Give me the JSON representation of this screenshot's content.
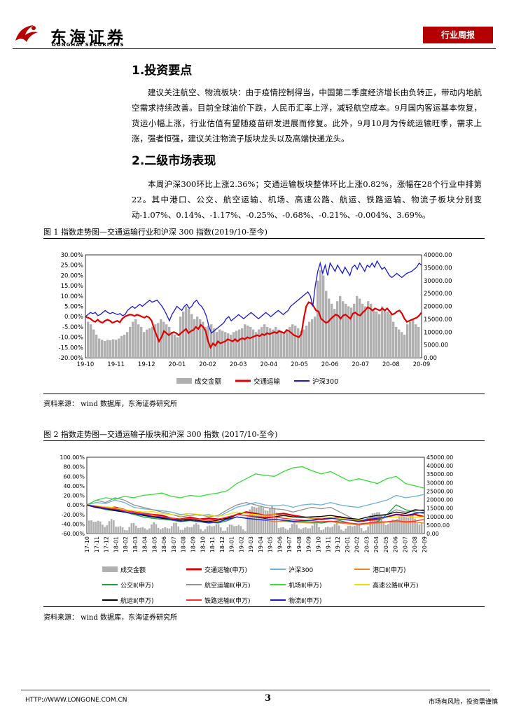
{
  "header": {
    "brand_cn": "东海证券",
    "brand_en": "DONGHAI SECURITIES",
    "report_type": "行业周报",
    "brand_color": "#b40000"
  },
  "sections": [
    {
      "heading": "1.投资要点",
      "body": "建议关注航空、物流板块：由于疫情控制得当，中国第二季度经济增长由负转正，带动内地航空需求持续改善。目前全球油价下跌，人民币汇率上浮，减轻航空成本。9月国内客运基本恢复，货运小幅上涨，行业估值有望随疫苗研发进展而修复。此外，9月10月为传统运输旺季，需求上涨，强者恒强，建议关注物流子版块龙头以及高端快递龙头。"
    },
    {
      "heading": "2.二级市场表现",
      "body": "本周沪深300环比上涨2.36%；交通运输板块整体环比上涨0.82%，涨幅在28个行业中排第22。其中港口、公交、航空运输、机场、高速公路、航运、铁路运输、物流子板块分别变动-1.07%、0.14%、-1.17%、-0.25%、-0.68%、-0.21%、-0.004%、3.69%。"
    }
  ],
  "figures": [
    {
      "caption": "图 1    指数走势图—交通运输行业和沪深 300 指数(2019/10-至今)",
      "source": "资料来源：   wind 数据库，东海证券研究所"
    },
    {
      "caption": "图 2    指数走势图—交通运输子版块和沪深 300 指数 (2017/10-至今)",
      "source": "资料来源：   wind 数据库，东海证券研究所"
    }
  ],
  "footer": {
    "url": "HTTP://WWW.LONGONE.COM.CN",
    "page": "3",
    "note": "市场有风险，投资需谨慎"
  },
  "chart_data": [
    {
      "type": "line",
      "y_left_ticks": [
        "30.00%",
        "25.00%",
        "20.00%",
        "15.00%",
        "10.00%",
        "5.00%",
        "0.00%",
        "-5.00%",
        "-10.00%",
        "-15.00%",
        "-20.00%"
      ],
      "y_right_ticks": [
        "40000.00",
        "35000.00",
        "30000.00",
        "25000.00",
        "20000.00",
        "15000.00",
        "10000.00",
        "5000.00",
        "0.00"
      ],
      "ylim_left": [
        -20,
        30
      ],
      "ylim_right": [
        0,
        40000
      ],
      "x_ticks": [
        "19-10",
        "19-11",
        "19-12",
        "20-01",
        "20-02",
        "20-03",
        "20-04",
        "20-05",
        "20-06",
        "20-07",
        "20-08",
        "20-09"
      ],
      "series": [
        {
          "name": "成交金额",
          "type": "bar",
          "color": "#b0b0b0",
          "axis": "right",
          "values": [
            14000,
            13000,
            11000,
            9000,
            7500,
            7000,
            6500,
            7000,
            6800,
            7200,
            7000,
            7500,
            8500,
            9000,
            10000,
            12000,
            14000,
            15000,
            13000,
            12000,
            10000,
            11000,
            11500,
            12000,
            13000,
            13500,
            15000,
            14000,
            13000,
            12000,
            10000,
            9000,
            8000,
            16000,
            18000,
            20000,
            19000,
            17000,
            15000,
            16000,
            15000,
            14000,
            12000,
            12500,
            13000,
            11500,
            10000,
            11000,
            10500,
            10000,
            9500,
            9000,
            10000,
            10500,
            11000,
            11500,
            13000,
            12500,
            12000,
            11000,
            10000,
            11000,
            12000,
            13000,
            12000,
            11500,
            11000,
            12000,
            11000,
            10500,
            10000,
            11000,
            12000,
            13000,
            12500,
            11500,
            10500,
            11000,
            12500,
            14000,
            15000,
            16000,
            30000,
            34000,
            32000,
            26000,
            23000,
            21000,
            19000,
            22000,
            24000,
            22000,
            21000,
            20000,
            19500,
            21000,
            24000,
            23000,
            21000,
            20000,
            22000,
            21000,
            19000,
            18000,
            17000,
            20000,
            19000,
            18000,
            17000,
            14000,
            12000,
            11000,
            10000,
            9000,
            13000,
            14000,
            15000,
            13000,
            12000
          ]
        },
        {
          "name": "交通运输",
          "type": "line",
          "color": "#e00000",
          "axis": "left",
          "values": [
            0,
            -0.5,
            -1,
            -2,
            -2.5,
            -1.5,
            -2.5,
            -3,
            -2,
            -1.5,
            -2,
            -3,
            -2.5,
            -2,
            -2.8,
            -1,
            0,
            0.5,
            1,
            0.8,
            0.3,
            1,
            0.5,
            0,
            -0.5,
            0.2,
            -0.5,
            -2,
            -6,
            -9,
            -12,
            -10,
            -7,
            -8,
            -9,
            -8,
            -7.5,
            -8,
            -9,
            -8,
            -7,
            -6,
            -8,
            -7,
            -6.5,
            -5,
            -6,
            -4,
            -5,
            -7,
            -12,
            -15,
            -13,
            -14,
            -12,
            -13,
            -12.5,
            -12,
            -11,
            -11.5,
            -12,
            -11,
            -12,
            -11,
            -10.5,
            -11,
            -10,
            -10.5,
            -10,
            -9.5,
            -9,
            -9.5,
            -8.5,
            -9,
            -8,
            -8.5,
            -8,
            -7.5,
            -8,
            -7,
            -7.5,
            -8,
            -6.5,
            -7,
            -8,
            -9,
            -9.5,
            -10,
            -8.5,
            -1,
            5,
            7,
            6.5,
            5,
            3,
            2.5,
            -1,
            -2,
            -3,
            -2.5,
            -1,
            0,
            1,
            0.5,
            -1,
            0.5,
            1,
            0,
            -1,
            1.5,
            2,
            1,
            0.5,
            2,
            3,
            4.5,
            4,
            3,
            4,
            3.5,
            3,
            4,
            3,
            4,
            2.5,
            1,
            1.5,
            2.5,
            3,
            1.5,
            -1,
            -2.5,
            -2,
            -1.5,
            -1,
            -0.5,
            0.5,
            2
          ]
        },
        {
          "name": "沪深300",
          "type": "line",
          "color": "#1a1ad6",
          "axis": "left",
          "values": [
            0,
            1,
            2,
            1.5,
            2,
            0.5,
            1,
            2,
            3,
            2,
            1.5,
            2,
            1.5,
            1,
            1.5,
            0.5,
            1,
            3,
            4,
            5,
            4,
            5,
            6,
            5,
            6,
            7,
            8,
            7,
            7.5,
            8,
            6.5,
            5,
            3,
            0.5,
            -2,
            1,
            3,
            5,
            4,
            3,
            5,
            6,
            4,
            5,
            7,
            8,
            6,
            5,
            3,
            0,
            -5,
            -8,
            -7,
            -6,
            -5,
            -4,
            -3,
            -1,
            0,
            -2,
            -1,
            0,
            1,
            0,
            -1,
            0,
            1,
            2,
            1,
            0,
            -1,
            0,
            1,
            2,
            1,
            0,
            1,
            2,
            3,
            2,
            1,
            2,
            3,
            5,
            6,
            7,
            8,
            9,
            10,
            11,
            12,
            10,
            5,
            15,
            22,
            26,
            21,
            25,
            20,
            26,
            24,
            22,
            25,
            23,
            21,
            24,
            22,
            20,
            24,
            25,
            23,
            26,
            24,
            22,
            25,
            24,
            26,
            24,
            27,
            25,
            23,
            24,
            22,
            20,
            19,
            20,
            21,
            20,
            19,
            20,
            21,
            21.5,
            22,
            23,
            24,
            26,
            25
          ]
        }
      ]
    },
    {
      "type": "line",
      "y_left_ticks": [
        "100.00%",
        "80.00%",
        "60.00%",
        "40.00%",
        "20.00%",
        "0.00%",
        "-20.00%",
        "-40.00%",
        "-60.00%"
      ],
      "y_right_ticks": [
        "45000.00",
        "40000.00",
        "35000.00",
        "30000.00",
        "25000.00",
        "20000.00",
        "15000.00",
        "10000.00",
        "5000.00",
        "0.00"
      ],
      "ylim_left": [
        -60,
        100
      ],
      "ylim_right": [
        0,
        45000
      ],
      "x_ticks": [
        "17-10",
        "17-11",
        "17-12",
        "18-01",
        "18-02",
        "18-03",
        "18-04",
        "18-05",
        "18-06",
        "18-07",
        "18-08",
        "18-09",
        "18-10",
        "18-11",
        "18-12",
        "19-01",
        "19-02",
        "19-03",
        "19-04",
        "19-05",
        "19-06",
        "19-07",
        "19-08",
        "19-09",
        "19-10",
        "19-11",
        "19-12",
        "20-01",
        "20-02",
        "20-03",
        "20-04",
        "20-05",
        "20-06",
        "20-07",
        "20-08",
        "20-09"
      ],
      "series": [
        {
          "name": "成交金额",
          "type": "bar",
          "color": "#b0b0b0",
          "axis": "right"
        },
        {
          "name": "交通运输(申万)",
          "type": "line",
          "color": "#e00000",
          "axis": "left",
          "values": [
            0,
            -5,
            -8,
            -5,
            -10,
            -15,
            -18,
            -20,
            -22,
            -28,
            -30,
            -26,
            -30,
            -28,
            -30,
            -28,
            -20,
            -15,
            -18,
            -22,
            -20,
            -18,
            -22,
            -25,
            -28,
            -30,
            -28,
            -25,
            -30,
            -35,
            -32,
            -30,
            -25,
            -20,
            -22,
            -20,
            -25
          ]
        },
        {
          "name": "沪深300",
          "type": "line",
          "color": "#6ab0d8",
          "axis": "left",
          "values": [
            0,
            5,
            3,
            10,
            5,
            -5,
            -8,
            -10,
            -12,
            -15,
            -20,
            -18,
            -22,
            -20,
            -25,
            -15,
            -5,
            0,
            5,
            0,
            -2,
            0,
            -5,
            0,
            2,
            0,
            5,
            0,
            -3,
            -5,
            0,
            5,
            10,
            20,
            15,
            18,
            22
          ]
        },
        {
          "name": "港口Ⅱ(申万)",
          "type": "line",
          "color": "#f08020",
          "axis": "left",
          "values": [
            0,
            -2,
            -5,
            -8,
            -10,
            -15,
            -20,
            -22,
            -25,
            -28,
            -30,
            -32,
            -30,
            -33,
            -35,
            -30,
            -25,
            -28,
            -30,
            -32,
            -35,
            -34,
            -36,
            -37,
            -38,
            -37,
            -35,
            -38,
            -40,
            -42,
            -40,
            -38,
            -36,
            -35,
            -37,
            -36,
            -38
          ]
        },
        {
          "name": "公交Ⅱ(申万)",
          "type": "line",
          "color": "#1e9e3a",
          "axis": "left",
          "values": [
            0,
            -5,
            -10,
            -12,
            -15,
            -20,
            -25,
            -28,
            -30,
            -32,
            -35,
            -33,
            -35,
            -36,
            -38,
            -33,
            -25,
            -28,
            -30,
            -32,
            -30,
            -33,
            -35,
            -34,
            -36,
            -38,
            -35,
            -33,
            -38,
            -40,
            -38,
            -35,
            -20,
            0,
            -10,
            -15,
            -18
          ]
        },
        {
          "name": "航空运输Ⅱ(申万)",
          "type": "line",
          "color": "#909090",
          "axis": "left",
          "values": [
            0,
            10,
            5,
            15,
            10,
            0,
            -5,
            -10,
            -15,
            -20,
            -25,
            -22,
            -20,
            -25,
            -22,
            -10,
            0,
            5,
            0,
            -5,
            -8,
            -10,
            -15,
            -10,
            -5,
            -8,
            -5,
            -15,
            -25,
            -35,
            -28,
            -25,
            -20,
            -10,
            -15,
            -12,
            -10
          ]
        },
        {
          "name": "机场Ⅱ(申万)",
          "type": "line",
          "color": "#33dd33",
          "axis": "left",
          "values": [
            0,
            10,
            15,
            12,
            18,
            15,
            20,
            22,
            25,
            18,
            15,
            20,
            18,
            22,
            25,
            30,
            45,
            55,
            65,
            62,
            60,
            70,
            78,
            80,
            72,
            65,
            70,
            60,
            50,
            55,
            50,
            45,
            55,
            60,
            45,
            40,
            35
          ]
        },
        {
          "name": "高速公路Ⅱ(申万)",
          "type": "line",
          "color": "#f0e000",
          "axis": "left",
          "values": [
            0,
            -2,
            -4,
            -6,
            -10,
            -12,
            -15,
            -14,
            -18,
            -20,
            -22,
            -18,
            -20,
            -22,
            -24,
            -20,
            -15,
            -18,
            -20,
            -22,
            -20,
            -24,
            -25,
            -26,
            -28,
            -27,
            -26,
            -28,
            -30,
            -32,
            -30,
            -28,
            -26,
            -25,
            -24,
            -26,
            -25
          ]
        },
        {
          "name": "航运Ⅱ(申万)",
          "type": "line",
          "color": "#000000",
          "axis": "left",
          "values": [
            0,
            -5,
            -8,
            -12,
            -15,
            -18,
            -22,
            -25,
            -28,
            -30,
            -32,
            -30,
            -33,
            -35,
            -32,
            -28,
            -20,
            -22,
            -25,
            -28,
            -25,
            -22,
            -25,
            -26,
            -25,
            -24,
            -22,
            -25,
            -28,
            -30,
            -25,
            -22,
            -20,
            -15,
            -18,
            -10,
            -12
          ]
        },
        {
          "name": "铁路运输Ⅱ(申万)",
          "type": "line",
          "color": "#ff3030",
          "axis": "left",
          "values": [
            0,
            -3,
            -6,
            -8,
            -12,
            -15,
            -18,
            -20,
            -25,
            -28,
            -30,
            -28,
            -30,
            -32,
            -30,
            -25,
            -20,
            -22,
            -24,
            -26,
            -25,
            -28,
            -30,
            -32,
            -33,
            -35,
            -34,
            -36,
            -38,
            -40,
            -38,
            -36,
            -35,
            -33,
            -35,
            -34,
            -30
          ]
        },
        {
          "name": "物流Ⅱ(申万)",
          "type": "line",
          "color": "#1a1ad6",
          "axis": "left",
          "values": [
            0,
            -4,
            -8,
            -10,
            -14,
            -18,
            -20,
            -24,
            -26,
            -30,
            -34,
            -32,
            -35,
            -38,
            -36,
            -30,
            -25,
            -28,
            -30,
            -32,
            -30,
            -32,
            -34,
            -33,
            -32,
            -30,
            -28,
            -30,
            -32,
            -34,
            -30,
            -28,
            -25,
            -20,
            -22,
            -18,
            -15
          ]
        }
      ]
    }
  ]
}
